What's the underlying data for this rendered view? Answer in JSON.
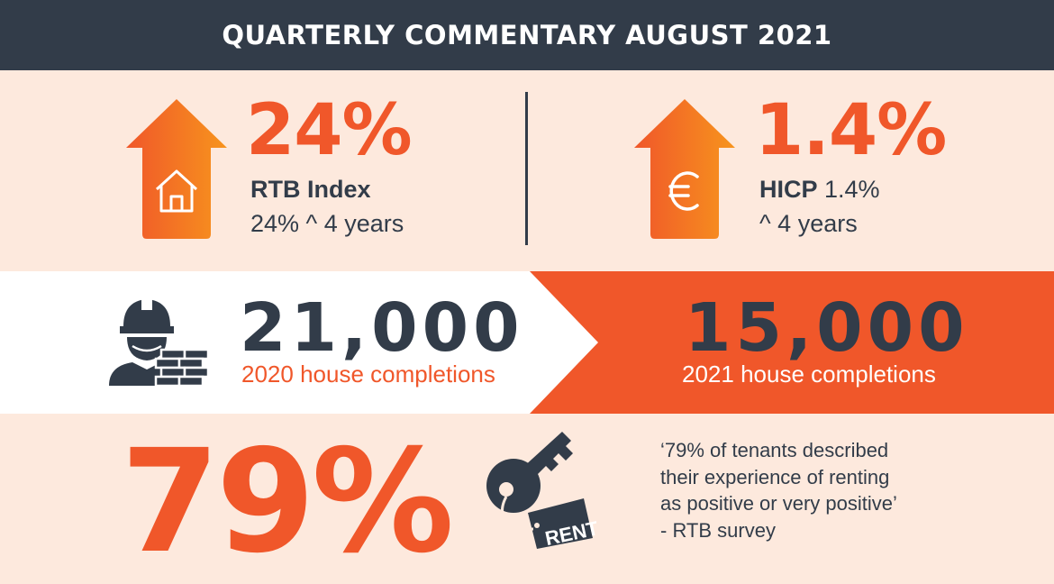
{
  "header": {
    "title": "QUARTERLY COMMENTARY AUGUST 2021"
  },
  "rtb": {
    "value": "24%",
    "label_bold": "RTB Index",
    "label_line2": "24% ^ 4 years",
    "icon": "house-icon"
  },
  "hicp": {
    "value": "1.4%",
    "label_bold": "HICP",
    "label_rest": " 1.4%",
    "label_line2": "^ 4 years",
    "icon": "euro-icon"
  },
  "completions": {
    "y2020": {
      "value": "21,000",
      "caption": "2020 house completions"
    },
    "y2021": {
      "value": "15,000",
      "caption": "2021 house completions"
    },
    "icon": "construction-worker-icon"
  },
  "survey": {
    "value": "79%",
    "icon": "rent-key-icon",
    "tag_text": "RENT",
    "quote_lines": [
      "‘79% of tenants described",
      "their experience of renting",
      "as positive or very positive’",
      "- RTB survey"
    ]
  },
  "colors": {
    "orange": "#f0572a",
    "dark": "#323c49",
    "peach": "#fde9dd",
    "arrow_light": "#f7941d"
  }
}
